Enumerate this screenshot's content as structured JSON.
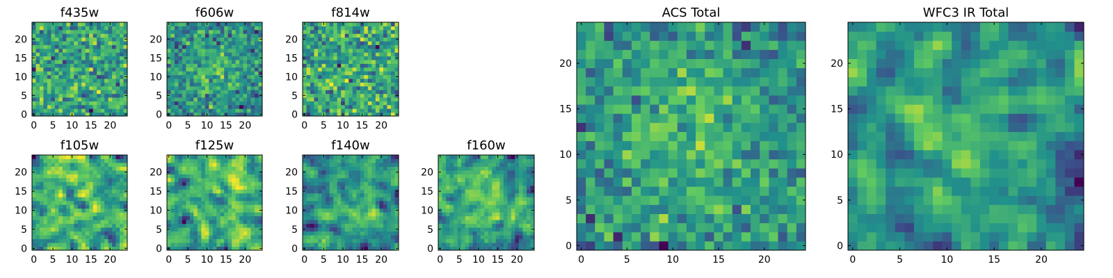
{
  "figure": {
    "description_type": "grid of noise image cutouts per filter",
    "colormap": [
      "#440154",
      "#3b528b",
      "#21918c",
      "#5ec962",
      "#fde725"
    ]
  },
  "chart_data": [
    {
      "type": "heatmap",
      "title": "f435w",
      "grid_size": 25,
      "xlim": [
        0,
        24
      ],
      "ylim": [
        0,
        24
      ],
      "xticks": [
        "0",
        "5",
        "10",
        "15",
        "20"
      ],
      "yticks": [
        "0",
        "5",
        "10",
        "15",
        "20"
      ],
      "seed": 11,
      "smooth": 0,
      "bright_center": false
    },
    {
      "type": "heatmap",
      "title": "f606w",
      "grid_size": 25,
      "xlim": [
        0,
        24
      ],
      "ylim": [
        0,
        24
      ],
      "xticks": [
        "0",
        "5",
        "10",
        "15",
        "20"
      ],
      "yticks": [
        "0",
        "5",
        "10",
        "15",
        "20"
      ],
      "seed": 23,
      "smooth": 0,
      "bright_center": true
    },
    {
      "type": "heatmap",
      "title": "f814w",
      "grid_size": 25,
      "xlim": [
        0,
        24
      ],
      "ylim": [
        0,
        24
      ],
      "xticks": [
        "0",
        "5",
        "10",
        "15",
        "20"
      ],
      "yticks": [
        "0",
        "5",
        "10",
        "15",
        "20"
      ],
      "seed": 37,
      "smooth": 0,
      "bright_center": false
    },
    {
      "type": "heatmap",
      "title": "f105w",
      "grid_size": 25,
      "xlim": [
        0,
        24
      ],
      "ylim": [
        0,
        24
      ],
      "xticks": [
        "0",
        "5",
        "10",
        "15",
        "20"
      ],
      "yticks": [
        "0",
        "5",
        "10",
        "15",
        "20"
      ],
      "seed": 41,
      "smooth": 1,
      "bright_center": false
    },
    {
      "type": "heatmap",
      "title": "f125w",
      "grid_size": 25,
      "xlim": [
        0,
        24
      ],
      "ylim": [
        0,
        24
      ],
      "xticks": [
        "0",
        "5",
        "10",
        "15",
        "20"
      ],
      "yticks": [
        "0",
        "5",
        "10",
        "15",
        "20"
      ],
      "seed": 53,
      "smooth": 1,
      "bright_center": false
    },
    {
      "type": "heatmap",
      "title": "f140w",
      "grid_size": 25,
      "xlim": [
        0,
        24
      ],
      "ylim": [
        0,
        24
      ],
      "xticks": [
        "0",
        "5",
        "10",
        "15",
        "20"
      ],
      "yticks": [
        "0",
        "5",
        "10",
        "15",
        "20"
      ],
      "seed": 67,
      "smooth": 1,
      "bright_center": true
    },
    {
      "type": "heatmap",
      "title": "f160w",
      "grid_size": 25,
      "xlim": [
        0,
        24
      ],
      "ylim": [
        0,
        24
      ],
      "xticks": [
        "0",
        "5",
        "10",
        "15",
        "20"
      ],
      "yticks": [
        "0",
        "5",
        "10",
        "15",
        "20"
      ],
      "seed": 79,
      "smooth": 1,
      "bright_center": true
    },
    {
      "type": "heatmap",
      "title": "ACS Total",
      "grid_size": 25,
      "xlim": [
        0,
        24
      ],
      "ylim": [
        0,
        24
      ],
      "xticks": [
        "0",
        "5",
        "10",
        "15",
        "20"
      ],
      "yticks": [
        "0",
        "5",
        "10",
        "15",
        "20"
      ],
      "seed": 97,
      "smooth": 0,
      "bright_center": true
    },
    {
      "type": "heatmap",
      "title": "WFC3 IR Total",
      "grid_size": 25,
      "xlim": [
        0,
        24
      ],
      "ylim": [
        0,
        24
      ],
      "xticks": [
        "0",
        "5",
        "10",
        "15",
        "20"
      ],
      "yticks": [
        "0",
        "5",
        "10",
        "15",
        "20"
      ],
      "seed": 131,
      "smooth": 1,
      "bright_center": true
    }
  ]
}
